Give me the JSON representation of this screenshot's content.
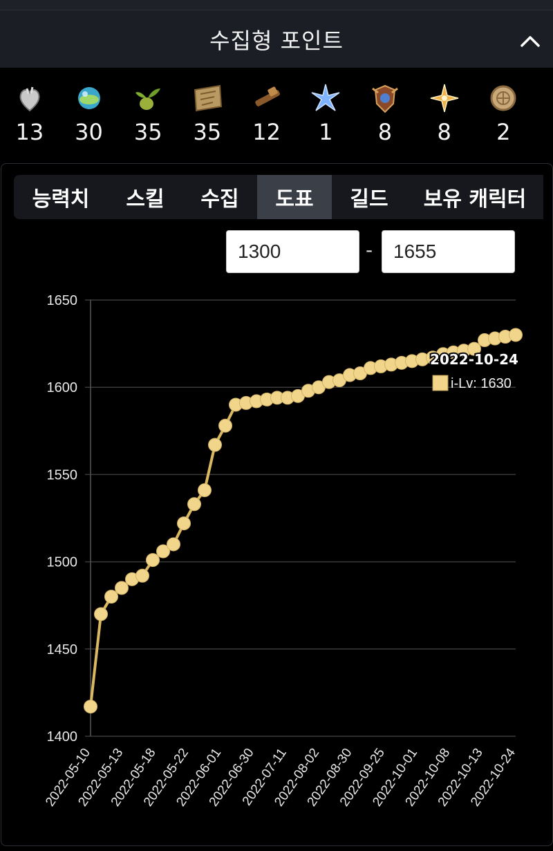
{
  "header": {
    "title": "수집형 포인트"
  },
  "collectibles": [
    {
      "icon": "heart-icon",
      "count": "13"
    },
    {
      "icon": "island-orb-icon",
      "count": "30"
    },
    {
      "icon": "seed-icon",
      "count": "35"
    },
    {
      "icon": "map-scroll-icon",
      "count": "35"
    },
    {
      "icon": "telescope-icon",
      "count": "12"
    },
    {
      "icon": "star-flower-icon",
      "count": "1"
    },
    {
      "icon": "crest-icon",
      "count": "8"
    },
    {
      "icon": "compass-star-icon",
      "count": "8"
    },
    {
      "icon": "coin-icon",
      "count": "2"
    }
  ],
  "tabs": [
    {
      "label": "능력치",
      "active": false
    },
    {
      "label": "스킬",
      "active": false
    },
    {
      "label": "수집",
      "active": false
    },
    {
      "label": "도표",
      "active": true
    },
    {
      "label": "길드",
      "active": false
    },
    {
      "label": "보유 캐릭터",
      "active": false
    }
  ],
  "range": {
    "min": "1300",
    "max": "1655",
    "separator": "-"
  },
  "tooltip": {
    "date": "2022-10-24",
    "label": "i-Lv: 1630"
  },
  "colors": {
    "series": "#f0d58a",
    "line": "#d9b860",
    "grid": "#3a3a3a"
  },
  "chart_data": {
    "type": "line",
    "title": "",
    "xlabel": "",
    "ylabel": "",
    "ylim": [
      1400,
      1650
    ],
    "yticks": [
      1400,
      1450,
      1500,
      1550,
      1600,
      1650
    ],
    "xtick_labels": [
      "2022-05-10",
      "2022-05-13",
      "2022-05-18",
      "2022-05-22",
      "2022-06-01",
      "2022-06-30",
      "2022-07-11",
      "2022-08-02",
      "2022-08-30",
      "2022-09-25",
      "2022-10-01",
      "2022-10-08",
      "2022-10-13",
      "2022-10-24"
    ],
    "grid": true,
    "series": [
      {
        "name": "i-Lv",
        "values": [
          1417,
          1470,
          1480,
          1485,
          1490,
          1492,
          1501,
          1506,
          1510,
          1522,
          1533,
          1541,
          1567,
          1578,
          1590,
          1591,
          1592,
          1593,
          1594,
          1594,
          1595,
          1598,
          1600,
          1603,
          1604,
          1607,
          1608,
          1611,
          1612,
          1613,
          1614,
          1615,
          1616,
          1617,
          1619,
          1620,
          1621,
          1622,
          1627,
          1628,
          1629,
          1630
        ]
      }
    ]
  }
}
